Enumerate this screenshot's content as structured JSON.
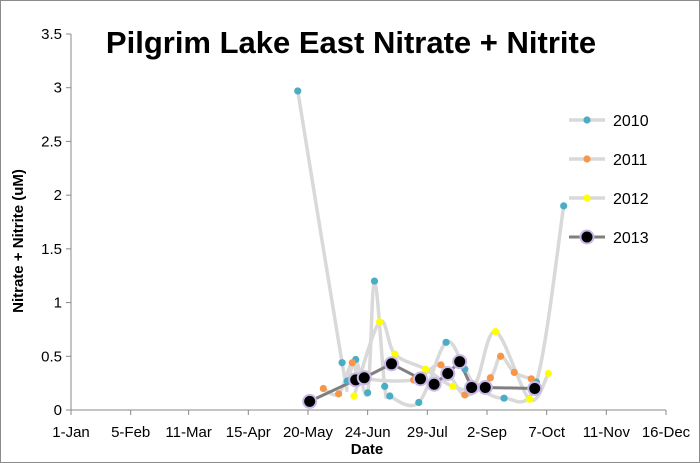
{
  "chart_data": {
    "type": "scatter",
    "title": "Pilgrim Lake East Nitrate + Nitrite",
    "xlabel": "Date",
    "ylabel": "Nitrate + Nitrite (uM)",
    "ylim": [
      0,
      3.5
    ],
    "yticks": [
      "0",
      "0.5",
      "1",
      "1.5",
      "2",
      "2.5",
      "3",
      "3.5"
    ],
    "x_axis": {
      "unit": "day of year",
      "range": [
        1,
        350
      ],
      "tick_values": [
        1,
        36,
        70,
        105,
        140,
        175,
        210,
        245,
        280,
        315,
        350
      ],
      "tick_labels": [
        "1-Jan",
        "5-Feb",
        "11-Mar",
        "15-Apr",
        "20-May",
        "24-Jun",
        "29-Jul",
        "2-Sep",
        "7-Oct",
        "11-Nov",
        "16-Dec"
      ]
    },
    "legend_position": "right",
    "grid": false,
    "series": [
      {
        "name": "2010",
        "color": "#4bacc6",
        "line_color": "#d9d9d9",
        "points": [
          [
            134,
            2.97
          ],
          [
            160,
            0.44
          ],
          [
            163,
            0.27
          ],
          [
            168,
            0.47
          ],
          [
            175,
            0.16
          ],
          [
            179,
            1.2
          ],
          [
            185,
            0.22
          ],
          [
            188,
            0.13
          ],
          [
            205,
            0.07
          ],
          [
            221,
            0.63
          ],
          [
            232,
            0.38
          ],
          [
            239,
            0.22
          ],
          [
            255,
            0.11
          ],
          [
            274,
            0.26
          ],
          [
            290,
            1.9
          ]
        ]
      },
      {
        "name": "2011",
        "color": "#f79646",
        "line_color": "#d9d9d9",
        "points": [
          [
            149,
            0.2
          ],
          [
            158,
            0.15
          ],
          [
            166,
            0.44
          ],
          [
            172,
            0.3
          ],
          [
            202,
            0.28
          ],
          [
            218,
            0.42
          ],
          [
            232,
            0.14
          ],
          [
            247,
            0.3
          ],
          [
            253,
            0.5
          ],
          [
            261,
            0.35
          ],
          [
            271,
            0.29
          ]
        ]
      },
      {
        "name": "2012",
        "color": "#ffff00",
        "line_color": "#d9d9d9",
        "points": [
          [
            167,
            0.13
          ],
          [
            182,
            0.82
          ],
          [
            191,
            0.52
          ],
          [
            209,
            0.38
          ],
          [
            225,
            0.22
          ],
          [
            238,
            0.24
          ],
          [
            250,
            0.73
          ],
          [
            270,
            0.1
          ],
          [
            281,
            0.34
          ]
        ]
      },
      {
        "name": "2013",
        "color": "#000000",
        "line_color": "#7f7f7f",
        "points": [
          [
            141,
            0.08
          ],
          [
            168,
            0.28
          ],
          [
            173,
            0.3
          ],
          [
            189,
            0.43
          ],
          [
            206,
            0.29
          ],
          [
            214,
            0.24
          ],
          [
            222,
            0.34
          ],
          [
            229,
            0.45
          ],
          [
            236,
            0.21
          ],
          [
            244,
            0.21
          ],
          [
            273,
            0.2
          ]
        ]
      }
    ]
  }
}
